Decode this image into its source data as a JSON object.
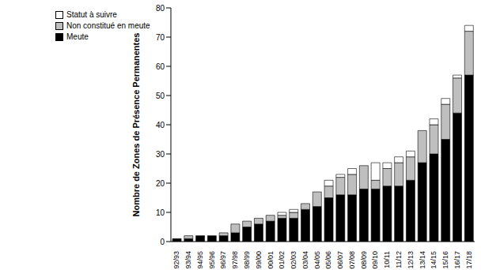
{
  "chart_data": {
    "type": "bar",
    "stacked": true,
    "legend": "top-left",
    "grid": false,
    "y_label": "Nombre de Zones de Présence Permanentes",
    "categories": [
      "92/93",
      "93/94",
      "94/95",
      "95/96",
      "96/97",
      "97/98",
      "98/99",
      "99/00",
      "00/01",
      "01/02",
      "02/03",
      "03/04",
      "04/05",
      "05/06",
      "06/07",
      "07/08",
      "08/09",
      "09/10",
      "10/11",
      "11/12",
      "12/13",
      "13/14",
      "14/15",
      "15/16",
      "16/17",
      "17/18"
    ],
    "series": [
      {
        "name": "Meute",
        "color": "#000000",
        "values": [
          1,
          1,
          2,
          2,
          2,
          3,
          5,
          6,
          7,
          8,
          8,
          11,
          12,
          15,
          16,
          16,
          18,
          18,
          19,
          19,
          21,
          27,
          30,
          35,
          44,
          57
        ]
      },
      {
        "name": "Non constitué en meute",
        "color": "#bfbfbf",
        "values": [
          0,
          1,
          0,
          0,
          1,
          3,
          2,
          2,
          2,
          1,
          2,
          2,
          5,
          4,
          6,
          7,
          8,
          3,
          6,
          8,
          8,
          11,
          10,
          12,
          12,
          15
        ]
      },
      {
        "name": "Statut à suivre",
        "color": "#ffffff",
        "values": [
          0,
          0,
          0,
          0,
          0,
          0,
          0,
          0,
          0,
          1,
          1,
          0,
          0,
          2,
          1,
          2,
          0,
          6,
          2,
          2,
          2,
          0,
          2,
          2,
          1,
          2
        ]
      }
    ],
    "ylim": [
      0,
      80
    ],
    "yticks": [
      0,
      10,
      20,
      30,
      40,
      50,
      60,
      70,
      80
    ]
  }
}
